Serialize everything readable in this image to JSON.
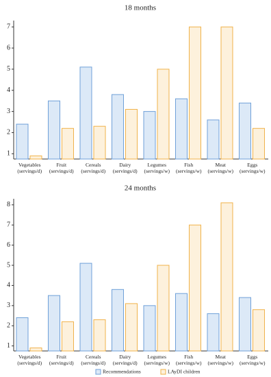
{
  "chart_data": [
    {
      "type": "bar",
      "title": "18 months",
      "categories": [
        "Vegetables (servings/d)",
        "Fruit (servings/d)",
        "Cereals (servings/d)",
        "Dairy (servings/d)",
        "Legumes (servings/w)",
        "Fish (servings/w)",
        "Meat (servings/w)",
        "Eggs (servings/w)"
      ],
      "series": [
        {
          "name": "Recommendations",
          "color": "#6fa0d8",
          "values": [
            2.4,
            3.5,
            5.1,
            3.8,
            3.0,
            3.6,
            2.6,
            3.4
          ]
        },
        {
          "name": "LAyDI children",
          "color": "#f0b24a",
          "values": [
            0.9,
            2.2,
            2.3,
            3.1,
            5.0,
            7.0,
            7.0,
            2.2
          ]
        }
      ],
      "ylim": [
        0.75,
        7.3
      ],
      "yticks": [
        1,
        2,
        3,
        4,
        5,
        6,
        7
      ]
    },
    {
      "type": "bar",
      "title": "24 months",
      "categories": [
        "Vegetables (servings/d)",
        "Fruit (servings/d)",
        "Cereals (servings/d)",
        "Dairy (servings/d)",
        "Legumes (servings/w)",
        "Fish (servings/w)",
        "Meat (servings/w)",
        "Eggs (servings/w)"
      ],
      "series": [
        {
          "name": "Recommendations",
          "color": "#6fa0d8",
          "values": [
            2.4,
            3.5,
            5.1,
            3.8,
            3.0,
            3.6,
            2.6,
            3.4
          ]
        },
        {
          "name": "LAyDI children",
          "color": "#f0b24a",
          "values": [
            0.9,
            2.2,
            2.3,
            3.1,
            5.0,
            7.0,
            8.1,
            2.8
          ]
        }
      ],
      "ylim": [
        0.75,
        8.3
      ],
      "yticks": [
        1,
        2,
        3,
        4,
        5,
        6,
        7,
        8
      ]
    }
  ]
}
